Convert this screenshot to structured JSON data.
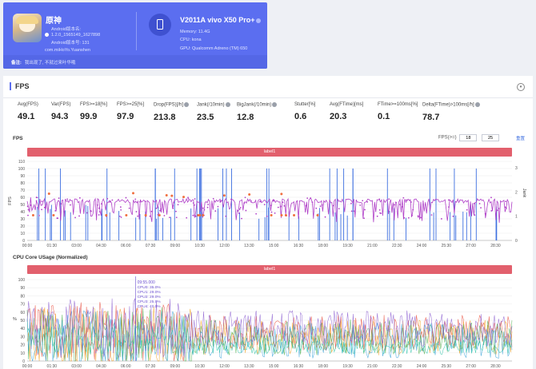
{
  "app": {
    "name": "原神",
    "android_version_line": "Android版本名:",
    "version_line": "1.2.0_1565149_1627898",
    "android_code_line": "Android版本号: 131",
    "package": "com.miHoYo.Yuanshen"
  },
  "device": {
    "title": "V2011A vivo X50 Pro+",
    "memory": "Memory: 11.4G",
    "cpu": "CPU: kona",
    "gpu": "GPU: Qualcomm Adreno (TM) 650"
  },
  "note": {
    "label": "备注:",
    "text": "我出现了, 不就过来叶华哦"
  },
  "panel": {
    "title": "FPS",
    "collapse_glyph": "▾"
  },
  "metrics": [
    {
      "label": "Avg(FPS)",
      "value": "49.1",
      "help": false
    },
    {
      "label": "Var(FPS)",
      "value": "94.3",
      "help": false
    },
    {
      "label": "FPS>=18[%]",
      "value": "99.9",
      "help": false
    },
    {
      "label": "FPS>=25[%]",
      "value": "97.9",
      "help": false
    },
    {
      "label": "Drop(FPS)[/h]",
      "value": "213.8",
      "help": true
    },
    {
      "label": "Jank(/10min)",
      "value": "23.5",
      "help": true
    },
    {
      "label": "BigJank(/10min)",
      "value": "12.8",
      "help": true
    },
    {
      "label": "Stutter[%]",
      "value": "0.6",
      "help": false
    },
    {
      "label": "Avg(FTime)[ms]",
      "value": "20.3",
      "help": false
    },
    {
      "label": "FTime>=100ms[%]",
      "value": "0.1",
      "help": false
    },
    {
      "label": "Delta(FTime)>100ms[/h]",
      "value": "78.7",
      "help": true
    }
  ],
  "fps_section": {
    "title": "FPS",
    "range_label": "FPS(>=)",
    "range_low": "18",
    "range_high": "25",
    "reset": "重置",
    "label_bar": "label1"
  },
  "cpu_section": {
    "title": "CPU Core USage (Normalized)",
    "label_bar": "label1",
    "tooltip": {
      "time": "09:55.000",
      "lines": [
        "CPU0: 35.0%",
        "CPU1: 29.0%",
        "CPU2: 29.0%",
        "CPU3: 25.0%",
        "CPU4: 40.0%"
      ]
    }
  },
  "colors": {
    "card": "#5b6ef0",
    "fps_line": "#b040c8",
    "jank_bar": "#3d6fe0",
    "big_jank": "#f07040",
    "label_bar": "#e2606d",
    "cpu_series": [
      "#e84a3a",
      "#f0a020",
      "#4fb050",
      "#33a0d8",
      "#8a5cd0",
      "#2ec4a8"
    ]
  },
  "chart_data": [
    {
      "type": "line",
      "title": "FPS",
      "ylabel_left": "FPS",
      "ylabel_right": "Jank",
      "ylim": [
        0,
        110
      ],
      "yticks": [
        0,
        10,
        20,
        30,
        40,
        50,
        60,
        70,
        80,
        90,
        100,
        110
      ],
      "y2ticks": [
        0,
        1,
        2,
        3
      ],
      "xticks": [
        "00:00",
        "01:30",
        "03:00",
        "04:30",
        "06:00",
        "07:30",
        "09:00",
        "10:30",
        "12:00",
        "13:30",
        "15:00",
        "16:30",
        "18:00",
        "19:30",
        "21:00",
        "22:30",
        "24:00",
        "25:30",
        "27:00",
        "28:30"
      ],
      "x_range_min": [
        0,
        29.5
      ],
      "series": [
        {
          "name": "FPS",
          "kind": "line",
          "typical": 55
        },
        {
          "name": "Jank",
          "kind": "bar"
        },
        {
          "name": "BigJank",
          "kind": "marker"
        }
      ]
    },
    {
      "type": "line",
      "title": "CPU Core USage (Normalized)",
      "ylabel": "%",
      "ylim": [
        0,
        100
      ],
      "yticks": [
        0,
        10,
        20,
        30,
        40,
        50,
        60,
        70,
        80,
        90,
        100
      ],
      "xticks": [
        "00:00",
        "01:30",
        "03:00",
        "04:30",
        "06:00",
        "07:30",
        "09:00",
        "10:30",
        "12:00",
        "13:30",
        "15:00",
        "16:30",
        "18:00",
        "19:30",
        "21:00",
        "22:30",
        "24:00",
        "25:30",
        "27:00",
        "28:30"
      ],
      "series": [
        {
          "name": "CPU0",
          "level": 35
        },
        {
          "name": "CPU1",
          "level": 29
        },
        {
          "name": "CPU2",
          "level": 29
        },
        {
          "name": "CPU3",
          "level": 25
        },
        {
          "name": "CPU4",
          "level": 40
        },
        {
          "name": "CPU5",
          "level": 10
        }
      ]
    }
  ]
}
